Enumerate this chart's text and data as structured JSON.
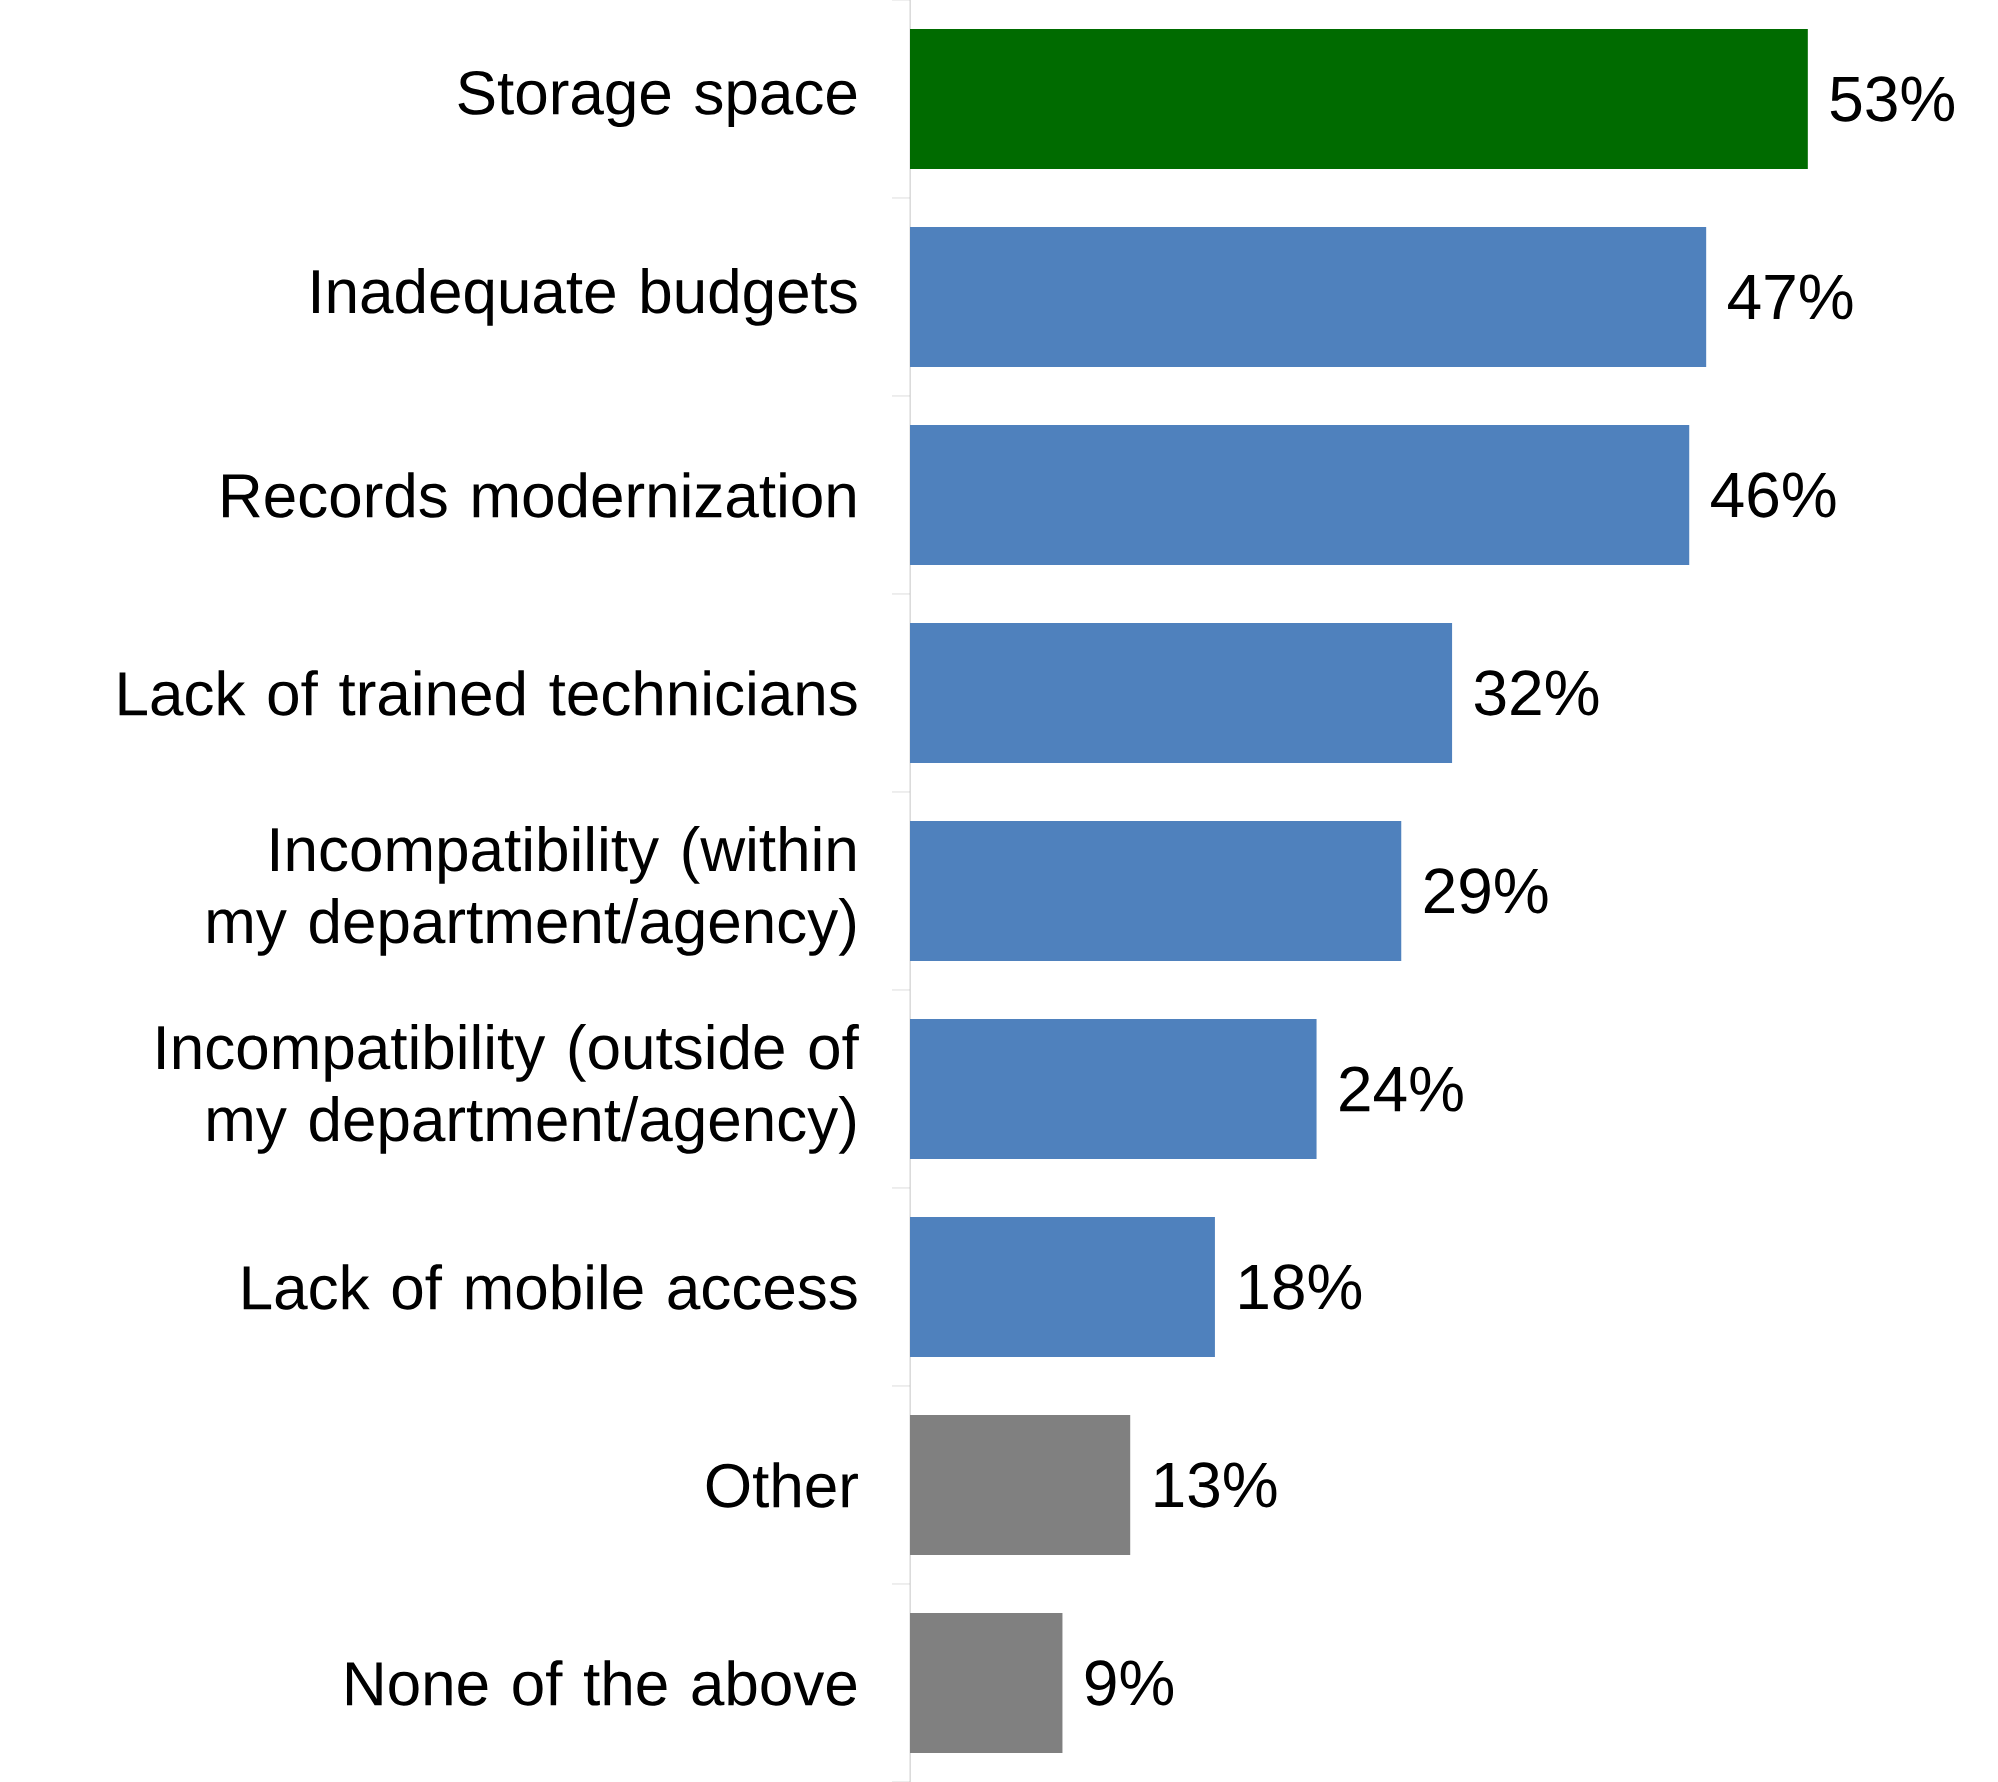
{
  "chart_data": {
    "type": "bar",
    "orientation": "horizontal",
    "categories": [
      "Storage space",
      "Inadequate budgets",
      "Records modernization",
      "Lack of trained technicians",
      "Incompatibility (within my department/agency)",
      "Incompatibility (outside of my department/agency)",
      "Lack of mobile access",
      "Other",
      "None of the above"
    ],
    "values": [
      53,
      47,
      46,
      32,
      29,
      24,
      18,
      13,
      9
    ],
    "value_labels": [
      "53%",
      "47%",
      "46%",
      "32%",
      "29%",
      "24%",
      "18%",
      "13%",
      "9%"
    ],
    "colors": [
      "#006b00",
      "#4f81bd",
      "#4f81bd",
      "#4f81bd",
      "#4f81bd",
      "#4f81bd",
      "#4f81bd",
      "#808080",
      "#808080"
    ]
  }
}
